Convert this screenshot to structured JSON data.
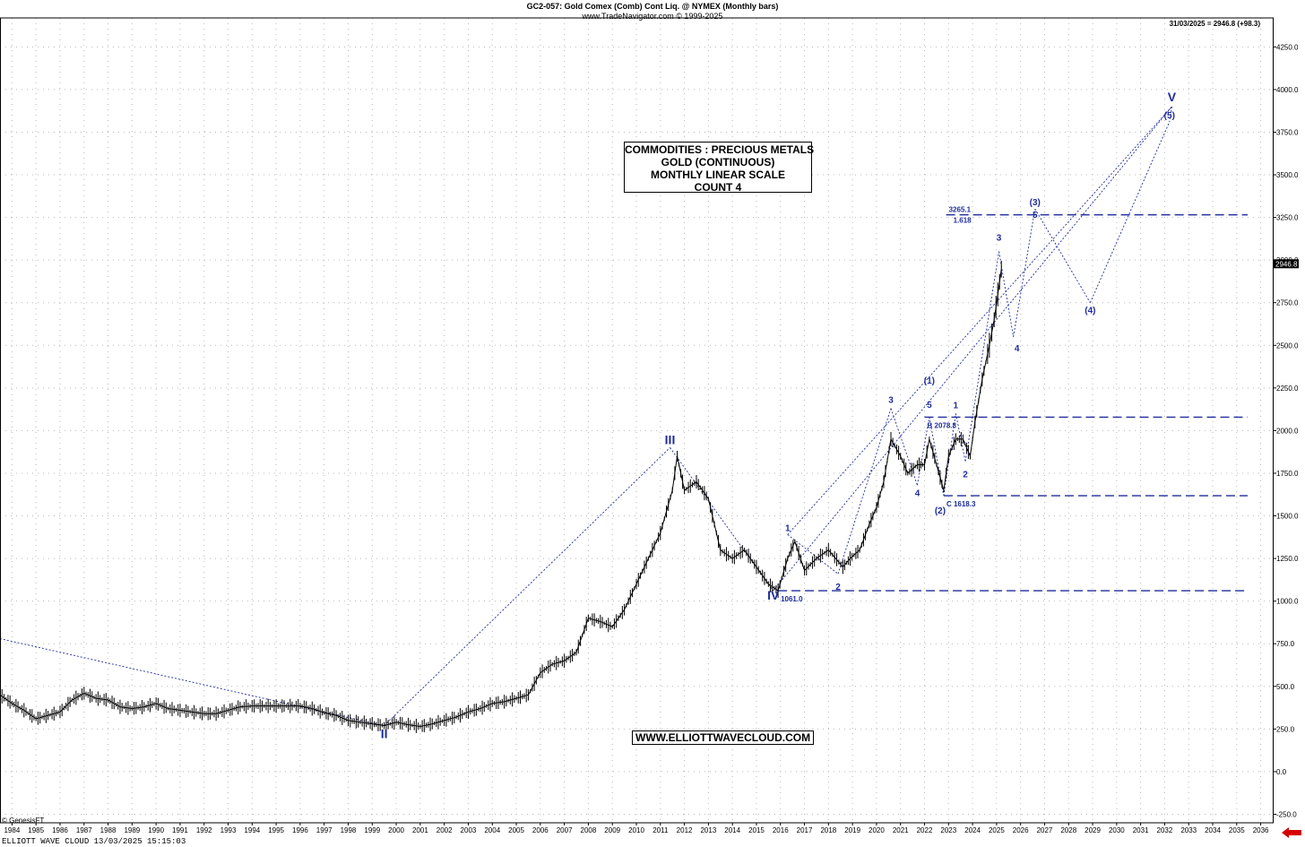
{
  "header": {
    "title": "GC2-057:  Gold Comex (Comb) Cont Liq. @ NYMEX  (Monthly bars)",
    "subtitle": "www.TradeNavigator.com © 1999-2025",
    "last_info": "31/03/2025 = 2946.8 (+98.3)"
  },
  "infobox": {
    "line1": "COMMODITIES : PRECIOUS METALS",
    "line2": "GOLD (CONTINUOUS)",
    "line3": "MONTHLY LINEAR SCALE",
    "line4": "COUNT 4"
  },
  "website": "WWW.ELLIOTTWAVECLOUD.COM",
  "footer": {
    "copyright": "© GenesisFT",
    "app_info": "ELLIOTT WAVE CLOUD   13/03/2025 15:15:03"
  },
  "colors": {
    "price": "#000000",
    "wave": "#1f2d9c",
    "grid": "#b9b9b9",
    "last_price_bg": "#000000",
    "nav_arrow": "#d40000"
  },
  "chart_data": {
    "type": "line",
    "title": "GC2-057:  Gold Comex (Comb) Cont Liq. @ NYMEX  (Monthly bars)",
    "xlabel": "",
    "ylabel": "",
    "xlim": [
      1983.5,
      2036.5
    ],
    "ylim": [
      -300,
      4420
    ],
    "y_ticks": [
      -250.0,
      0.0,
      250.0,
      500.0,
      750.0,
      1000.0,
      1250.0,
      1500.0,
      1750.0,
      2000.0,
      2250.0,
      2500.0,
      2750.0,
      3000.0,
      3250.0,
      3500.0,
      3750.0,
      4000.0,
      4250.0
    ],
    "x_ticks": [
      1984,
      1985,
      1986,
      1987,
      1988,
      1989,
      1990,
      1991,
      1992,
      1993,
      1994,
      1995,
      1996,
      1997,
      1998,
      1999,
      2000,
      2001,
      2002,
      2003,
      2004,
      2005,
      2006,
      2007,
      2008,
      2009,
      2010,
      2011,
      2012,
      2013,
      2014,
      2015,
      2016,
      2017,
      2018,
      2019,
      2020,
      2021,
      2022,
      2023,
      2024,
      2025,
      2026,
      2027,
      2028,
      2029,
      2030,
      2031,
      2032,
      2033,
      2034,
      2035,
      2036
    ],
    "grid": true,
    "last_price": "2946.8",
    "series": [
      {
        "x": [
          1983.5,
          1984.0,
          1984.5,
          1985.0,
          1985.5,
          1986.0,
          1986.5,
          1987.0,
          1987.5,
          1988.0,
          1988.5,
          1989.0,
          1989.5,
          1990.0,
          1990.5,
          1991.0,
          1991.5,
          1992.0,
          1992.5,
          1993.0,
          1993.5,
          1994.0,
          1994.5,
          1995.0,
          1995.5,
          1996.0,
          1996.5,
          1997.0,
          1997.5,
          1998.0,
          1998.5,
          1999.0,
          1999.5,
          2000.0,
          2000.5,
          2001.0,
          2001.5,
          2002.0,
          2002.5,
          2003.0,
          2003.5,
          2004.0,
          2004.5,
          2005.0,
          2005.5,
          2006.0,
          2006.5,
          2007.0,
          2007.5,
          2008.0,
          2008.5,
          2009.0,
          2009.5,
          2010.0,
          2010.5,
          2011.0,
          2011.5,
          2011.7,
          2012.0,
          2012.5,
          2013.0,
          2013.5,
          2014.0,
          2014.5,
          2015.0,
          2015.5,
          2015.9,
          2016.3,
          2016.6,
          2017.0,
          2017.5,
          2018.0,
          2018.6,
          2018.9,
          2019.3,
          2019.7,
          2020.0,
          2020.3,
          2020.6,
          2021.0,
          2021.3,
          2021.7,
          2022.0,
          2022.2,
          2022.5,
          2022.8,
          2023.0,
          2023.3,
          2023.6,
          2023.9,
          2024.1,
          2024.4,
          2024.7,
          2024.9,
          2025.2
        ],
        "y": [
          450,
          400,
          360,
          310,
          330,
          350,
          420,
          460,
          430,
          420,
          380,
          370,
          380,
          400,
          370,
          360,
          350,
          340,
          340,
          360,
          380,
          385,
          385,
          385,
          385,
          385,
          370,
          345,
          330,
          300,
          290,
          280,
          270,
          290,
          275,
          265,
          280,
          300,
          320,
          350,
          370,
          400,
          410,
          430,
          450,
          580,
          630,
          650,
          700,
          900,
          880,
          850,
          950,
          1100,
          1250,
          1400,
          1650,
          1850,
          1650,
          1700,
          1600,
          1300,
          1250,
          1300,
          1200,
          1100,
          1061,
          1250,
          1350,
          1180,
          1250,
          1300,
          1200,
          1250,
          1300,
          1450,
          1550,
          1700,
          1950,
          1850,
          1750,
          1800,
          1800,
          1950,
          1800,
          1650,
          1850,
          1950,
          1950,
          1850,
          2050,
          2300,
          2500,
          2650,
          2946.8
        ]
      }
    ],
    "horizontal_levels": [
      {
        "value": 3265.1,
        "label": "3265.1",
        "sublabel": "1.618",
        "x_start": 2022.9
      },
      {
        "value": 2078.8,
        "label": "B 2078.8",
        "x_start": 2022.0
      },
      {
        "value": 1618.3,
        "label": "C 1618.3",
        "x_start": 2022.8
      },
      {
        "value": 1061.0,
        "label": "1061.0",
        "x_start": 2015.9
      }
    ],
    "wave_labels": [
      {
        "label": "II",
        "x": 1999.5,
        "y": 270
      },
      {
        "label": "III",
        "x": 2011.4,
        "y": 1900
      },
      {
        "label": "IV",
        "x": 2015.7,
        "y": 1061
      },
      {
        "label": "V",
        "x": 2032.3,
        "y": 3900
      },
      {
        "label": "1",
        "x": 2016.3,
        "y": 1390
      },
      {
        "label": "2",
        "x": 2018.4,
        "y": 1160
      },
      {
        "label": "3",
        "x": 2020.6,
        "y": 2130
      },
      {
        "label": "4",
        "x": 2021.7,
        "y": 1680
      },
      {
        "label": "5",
        "x": 2022.2,
        "y": 2080
      },
      {
        "label": "(1)",
        "x": 2022.2,
        "y": 2170
      },
      {
        "label": "(2)",
        "x": 2022.8,
        "y": 1618
      },
      {
        "label": "1",
        "x": 2023.3,
        "y": 2100
      },
      {
        "label": "2",
        "x": 2023.7,
        "y": 1820
      },
      {
        "label": "3",
        "x": 2025.1,
        "y": 3050
      },
      {
        "label": "4",
        "x": 2025.7,
        "y": 2550
      },
      {
        "label": "5",
        "x": 2026.6,
        "y": 3300
      },
      {
        "label": "(3)",
        "x": 2026.6,
        "y": 3300
      },
      {
        "label": "(4)",
        "x": 2028.9,
        "y": 2750
      },
      {
        "label": "(5)",
        "x": 2032.2,
        "y": 3810
      }
    ]
  }
}
